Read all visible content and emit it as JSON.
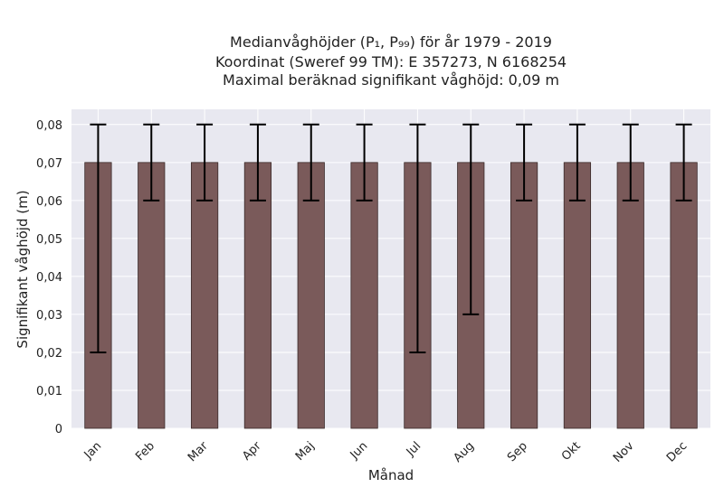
{
  "chart_data": {
    "type": "bar",
    "title_lines": [
      "Medianvåghöjder (P₁, P₉₉) för år 1979 - 2019",
      "Koordinat (Sweref 99 TM): E 357273, N 6168254",
      "Maximal beräknad signifikant våghöjd: 0,09 m"
    ],
    "xlabel": "Månad",
    "ylabel": "Signifikant våghöjd (m)",
    "categories": [
      "Jan",
      "Feb",
      "Mar",
      "Apr",
      "Maj",
      "Jun",
      "Jul",
      "Aug",
      "Sep",
      "Okt",
      "Nov",
      "Dec"
    ],
    "values": [
      0.07,
      0.07,
      0.07,
      0.07,
      0.07,
      0.07,
      0.07,
      0.07,
      0.07,
      0.07,
      0.07,
      0.07
    ],
    "error_low": [
      0.02,
      0.06,
      0.06,
      0.06,
      0.06,
      0.06,
      0.02,
      0.03,
      0.06,
      0.06,
      0.06,
      0.06
    ],
    "error_high": [
      0.08,
      0.08,
      0.08,
      0.08,
      0.08,
      0.08,
      0.08,
      0.08,
      0.08,
      0.08,
      0.08,
      0.08
    ],
    "ylim": [
      0,
      0.084
    ],
    "yticks": [
      0,
      0.01,
      0.02,
      0.03,
      0.04,
      0.05,
      0.06,
      0.07,
      0.08
    ],
    "ytick_labels": [
      "0",
      "0,01",
      "0,02",
      "0,03",
      "0,04",
      "0,05",
      "0,06",
      "0,07",
      "0,08"
    ],
    "grid": true,
    "colors": {
      "bar": "#7a5a5a",
      "bar_edge": "#3a2a2a",
      "plot_bg": "#e8e8f0",
      "grid": "#ffffff",
      "error": "#000000"
    }
  }
}
